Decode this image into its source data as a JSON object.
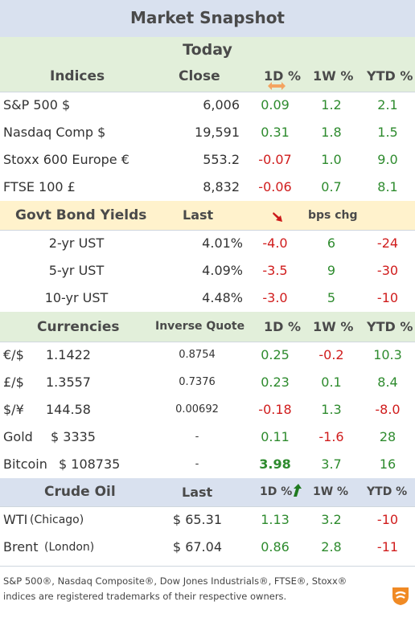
{
  "title": "Market Snapshot",
  "today_label": "Today",
  "indices": {
    "headers": {
      "name": "Indices",
      "close": "Close",
      "d1": "1D %",
      "w1": "1W %",
      "ytd": "YTD %"
    },
    "rows": [
      {
        "name": "S&P 500  $",
        "close": "6,006",
        "d1": "0.09",
        "w1": "1.2",
        "ytd": "2.1"
      },
      {
        "name": "Nasdaq Comp  $",
        "close": "19,591",
        "d1": "0.31",
        "w1": "1.8",
        "ytd": "1.5"
      },
      {
        "name": "Stoxx 600 Europe  €",
        "close": "553.2",
        "d1": "-0.07",
        "w1": "1.0",
        "ytd": "9.0"
      },
      {
        "name": "FTSE 100  £",
        "close": "8,832",
        "d1": "-0.06",
        "w1": "0.7",
        "ytd": "8.1"
      }
    ]
  },
  "bonds": {
    "headers": {
      "name": "Govt Bond Yields",
      "last": "Last",
      "chg": "bps chg"
    },
    "rows": [
      {
        "name": "2-yr UST",
        "last": "4.01%",
        "d1": "-4.0",
        "w1": "6",
        "ytd": "-24"
      },
      {
        "name": "5-yr UST",
        "last": "4.09%",
        "d1": "-3.5",
        "w1": "9",
        "ytd": "-30"
      },
      {
        "name": "10-yr UST",
        "last": "4.48%",
        "d1": "-3.0",
        "w1": "5",
        "ytd": "-10"
      }
    ]
  },
  "currencies": {
    "headers": {
      "name": "Currencies",
      "inverse": "Inverse Quote",
      "d1": "1D %",
      "w1": "1W %",
      "ytd": "YTD %"
    },
    "rows": [
      {
        "name": "€/$",
        "value": "1.1422",
        "inverse": "0.8754",
        "d1": "0.25",
        "w1": "-0.2",
        "ytd": "10.3"
      },
      {
        "name": "£/$",
        "value": "1.3557",
        "inverse": "0.7376",
        "d1": "0.23",
        "w1": "0.1",
        "ytd": "8.4"
      },
      {
        "name": "$/¥",
        "value": "144.58",
        "inverse": "0.00692",
        "d1": "-0.18",
        "w1": "1.3",
        "ytd": "-8.0"
      },
      {
        "name": "Gold",
        "value": "$ 3335",
        "inverse": "-",
        "d1": "0.11",
        "w1": "-1.6",
        "ytd": "28"
      },
      {
        "name": "Bitcoin",
        "value": "$ 108735",
        "inverse": "-",
        "d1": "3.98",
        "w1": "3.7",
        "ytd": "16"
      }
    ]
  },
  "crude": {
    "headers": {
      "name": "Crude Oil",
      "last": "Last",
      "d1": "1D %",
      "w1": "1W %",
      "ytd": "YTD %"
    },
    "rows": [
      {
        "name": "WTI",
        "sub": "(Chicago)",
        "last": "$ 65.31",
        "d1": "1.13",
        "w1": "3.2",
        "ytd": "-10"
      },
      {
        "name": "Brent",
        "sub": "(London)",
        "last": "$ 67.04",
        "d1": "0.86",
        "w1": "2.8",
        "ytd": "-11"
      }
    ]
  },
  "footnote_line1": "S&P 500®, Nasdaq Composite®, Dow Jones Industrials®, FTSE®, Stoxx®",
  "footnote_line2": "indices are registered trademarks of their respective owners.",
  "colors": {
    "positive": "#2e8b2e",
    "negative": "#d01c1c",
    "title_band": "#d9e1ef",
    "green_band": "#e2efda",
    "yellow_band": "#fff2cc",
    "arrow_orange": "#f4a460"
  },
  "icons": [
    "left-right-arrow-icon",
    "down-arrow-icon",
    "up-arrow-icon",
    "brand-logo-icon"
  ]
}
